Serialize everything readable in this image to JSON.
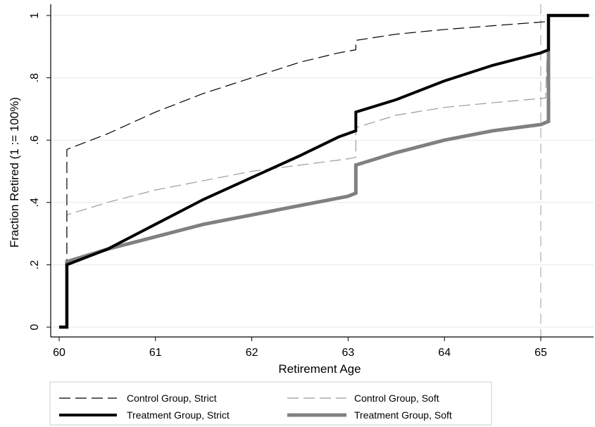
{
  "chart_data": {
    "type": "line",
    "xlabel": "Retirement Age",
    "ylabel": "Fraction Retired (1 := 100%)",
    "xlim": [
      60,
      65.5
    ],
    "ylim": [
      0,
      1
    ],
    "x_ticks": [
      {
        "value": 60,
        "label": "60"
      },
      {
        "value": 61,
        "label": "61"
      },
      {
        "value": 62,
        "label": "62"
      },
      {
        "value": 63,
        "label": "63"
      },
      {
        "value": 64,
        "label": "64"
      },
      {
        "value": 65,
        "label": "65"
      }
    ],
    "y_ticks": [
      {
        "value": 0,
        "label": "0"
      },
      {
        "value": 0.2,
        "label": ".2"
      },
      {
        "value": 0.4,
        "label": ".4"
      },
      {
        "value": 0.6,
        "label": ".6"
      },
      {
        "value": 0.8,
        "label": ".8"
      },
      {
        "value": 1,
        "label": "1"
      }
    ],
    "grid": "horizontal",
    "reference_line_x": 65,
    "legend_position": "bottom",
    "series": [
      {
        "name": "Control Group, Strict",
        "style": "dashed",
        "color": "#000000",
        "width": 1.2,
        "points": [
          [
            60.0,
            0
          ],
          [
            60.08,
            0
          ],
          [
            60.08,
            0.57
          ],
          [
            60.5,
            0.62
          ],
          [
            61.0,
            0.69
          ],
          [
            61.5,
            0.75
          ],
          [
            62.0,
            0.8
          ],
          [
            62.5,
            0.85
          ],
          [
            62.9,
            0.88
          ],
          [
            63.08,
            0.89
          ],
          [
            63.08,
            0.92
          ],
          [
            63.5,
            0.94
          ],
          [
            64.0,
            0.955
          ],
          [
            64.5,
            0.967
          ],
          [
            65.05,
            0.98
          ],
          [
            65.08,
            1.0
          ],
          [
            65.5,
            1.0
          ]
        ]
      },
      {
        "name": "Control Group, Soft",
        "style": "dashed",
        "color": "#9a9a9a",
        "width": 1.2,
        "points": [
          [
            60.0,
            0
          ],
          [
            60.08,
            0
          ],
          [
            60.08,
            0.36
          ],
          [
            60.5,
            0.4
          ],
          [
            61.0,
            0.44
          ],
          [
            61.5,
            0.47
          ],
          [
            62.0,
            0.5
          ],
          [
            62.5,
            0.52
          ],
          [
            63.0,
            0.54
          ],
          [
            63.08,
            0.545
          ],
          [
            63.08,
            0.64
          ],
          [
            63.5,
            0.68
          ],
          [
            64.0,
            0.705
          ],
          [
            64.5,
            0.72
          ],
          [
            65.05,
            0.735
          ],
          [
            65.08,
            1.0
          ],
          [
            65.5,
            1.0
          ]
        ]
      },
      {
        "name": "Treatment Group, Strict",
        "style": "solid",
        "color": "#000000",
        "width": 4,
        "points": [
          [
            60.0,
            0
          ],
          [
            60.08,
            0
          ],
          [
            60.08,
            0.2
          ],
          [
            60.5,
            0.25
          ],
          [
            61.0,
            0.33
          ],
          [
            61.5,
            0.41
          ],
          [
            62.0,
            0.48
          ],
          [
            62.5,
            0.55
          ],
          [
            62.9,
            0.61
          ],
          [
            63.08,
            0.63
          ],
          [
            63.08,
            0.69
          ],
          [
            63.5,
            0.73
          ],
          [
            64.0,
            0.79
          ],
          [
            64.5,
            0.84
          ],
          [
            65.0,
            0.88
          ],
          [
            65.08,
            0.89
          ],
          [
            65.08,
            1.0
          ],
          [
            65.5,
            1.0
          ]
        ]
      },
      {
        "name": "Treatment Group, Soft",
        "style": "solid",
        "color": "#808080",
        "width": 5,
        "points": [
          [
            60.0,
            0
          ],
          [
            60.08,
            0
          ],
          [
            60.08,
            0.21
          ],
          [
            60.5,
            0.25
          ],
          [
            61.0,
            0.29
          ],
          [
            61.5,
            0.33
          ],
          [
            62.0,
            0.36
          ],
          [
            62.5,
            0.39
          ],
          [
            63.0,
            0.42
          ],
          [
            63.08,
            0.43
          ],
          [
            63.08,
            0.52
          ],
          [
            63.5,
            0.56
          ],
          [
            64.0,
            0.6
          ],
          [
            64.5,
            0.63
          ],
          [
            65.0,
            0.65
          ],
          [
            65.08,
            0.66
          ],
          [
            65.08,
            1.0
          ],
          [
            65.5,
            1.0
          ]
        ]
      }
    ],
    "legend_order": [
      0,
      1,
      2,
      3
    ]
  }
}
